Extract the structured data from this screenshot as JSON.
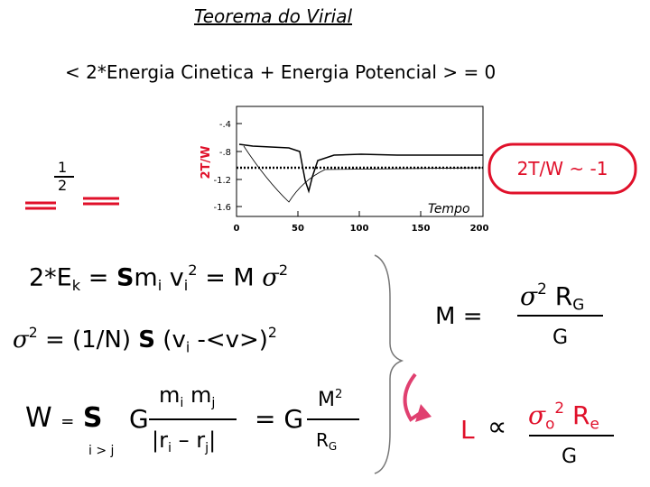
{
  "title": "Teorema do Virial",
  "virial": {
    "open": "<",
    "text": "2*Energia Cinetica + Energia Potencial",
    "close": ">",
    "rhs": "= 0"
  },
  "half": {
    "numerator": "1",
    "denominator": "2"
  },
  "plot": {
    "ylabel": "2T/W",
    "yticks": [
      "-.4",
      "-.8",
      "-1.2",
      "-1.6"
    ],
    "xticks": [
      "0",
      "50",
      "100",
      "150",
      "200"
    ],
    "xlabel": "Tempo"
  },
  "annotation": "2T/W ~ -1",
  "kinetic": [
    "2*E",
    "k",
    "=",
    "S",
    "m",
    "i",
    "v",
    "i",
    "2",
    "= M",
    "σ",
    "2"
  ],
  "dispersion": [
    "σ",
    "2",
    "= (1/N)",
    "S",
    "(v",
    "i",
    "-<v>)",
    "2"
  ],
  "potential": {
    "lhs": [
      "W",
      "=",
      "S"
    ],
    "sum_index": "i > j",
    "g": "G",
    "numerator": [
      "m",
      "i",
      "m",
      "j"
    ],
    "denominator": [
      "|r",
      "i",
      "– r",
      "j",
      "|"
    ],
    "equals": "= G",
    "num2": [
      "M",
      "2"
    ],
    "den2": [
      "R",
      "G"
    ]
  },
  "mass": {
    "lhs": "M =",
    "numerator": [
      "σ",
      "2",
      "R",
      "G"
    ],
    "denominator": "G"
  },
  "luminosity": {
    "lhs": "L",
    "prop": "∝",
    "numerator": [
      "σ",
      "o",
      "2",
      "R",
      "e"
    ],
    "denominator": "G"
  }
}
